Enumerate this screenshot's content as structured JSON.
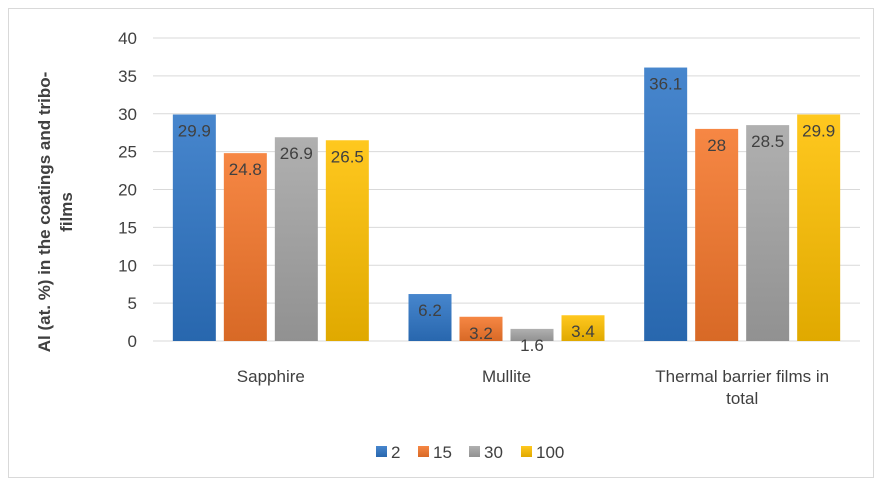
{
  "chart_data": {
    "type": "bar",
    "categories": [
      "Sapphire",
      "Mullite",
      "Thermal barrier films in total"
    ],
    "category_lines": [
      [
        "Sapphire"
      ],
      [
        "Mullite"
      ],
      [
        "Thermal barrier films in",
        "total"
      ]
    ],
    "series": [
      {
        "name": "2",
        "values": [
          29.9,
          6.2,
          36.1
        ],
        "color": "#2e75c6"
      },
      {
        "name": "15",
        "values": [
          24.8,
          3.2,
          28
        ],
        "color": "#f5772b"
      },
      {
        "name": "30",
        "values": [
          26.9,
          1.6,
          28.5
        ],
        "color": "#a5a5a5"
      },
      {
        "name": "100",
        "values": [
          26.5,
          3.4,
          29.9
        ],
        "color": "#ffc000"
      }
    ],
    "ylabel_lines": [
      "Al (at. %) in the coatings and tribo-",
      "films"
    ],
    "ylim": [
      0,
      40
    ],
    "yticks": [
      0,
      5,
      10,
      15,
      20,
      25,
      30,
      35,
      40
    ],
    "grid": true,
    "legend_position": "bottom"
  }
}
